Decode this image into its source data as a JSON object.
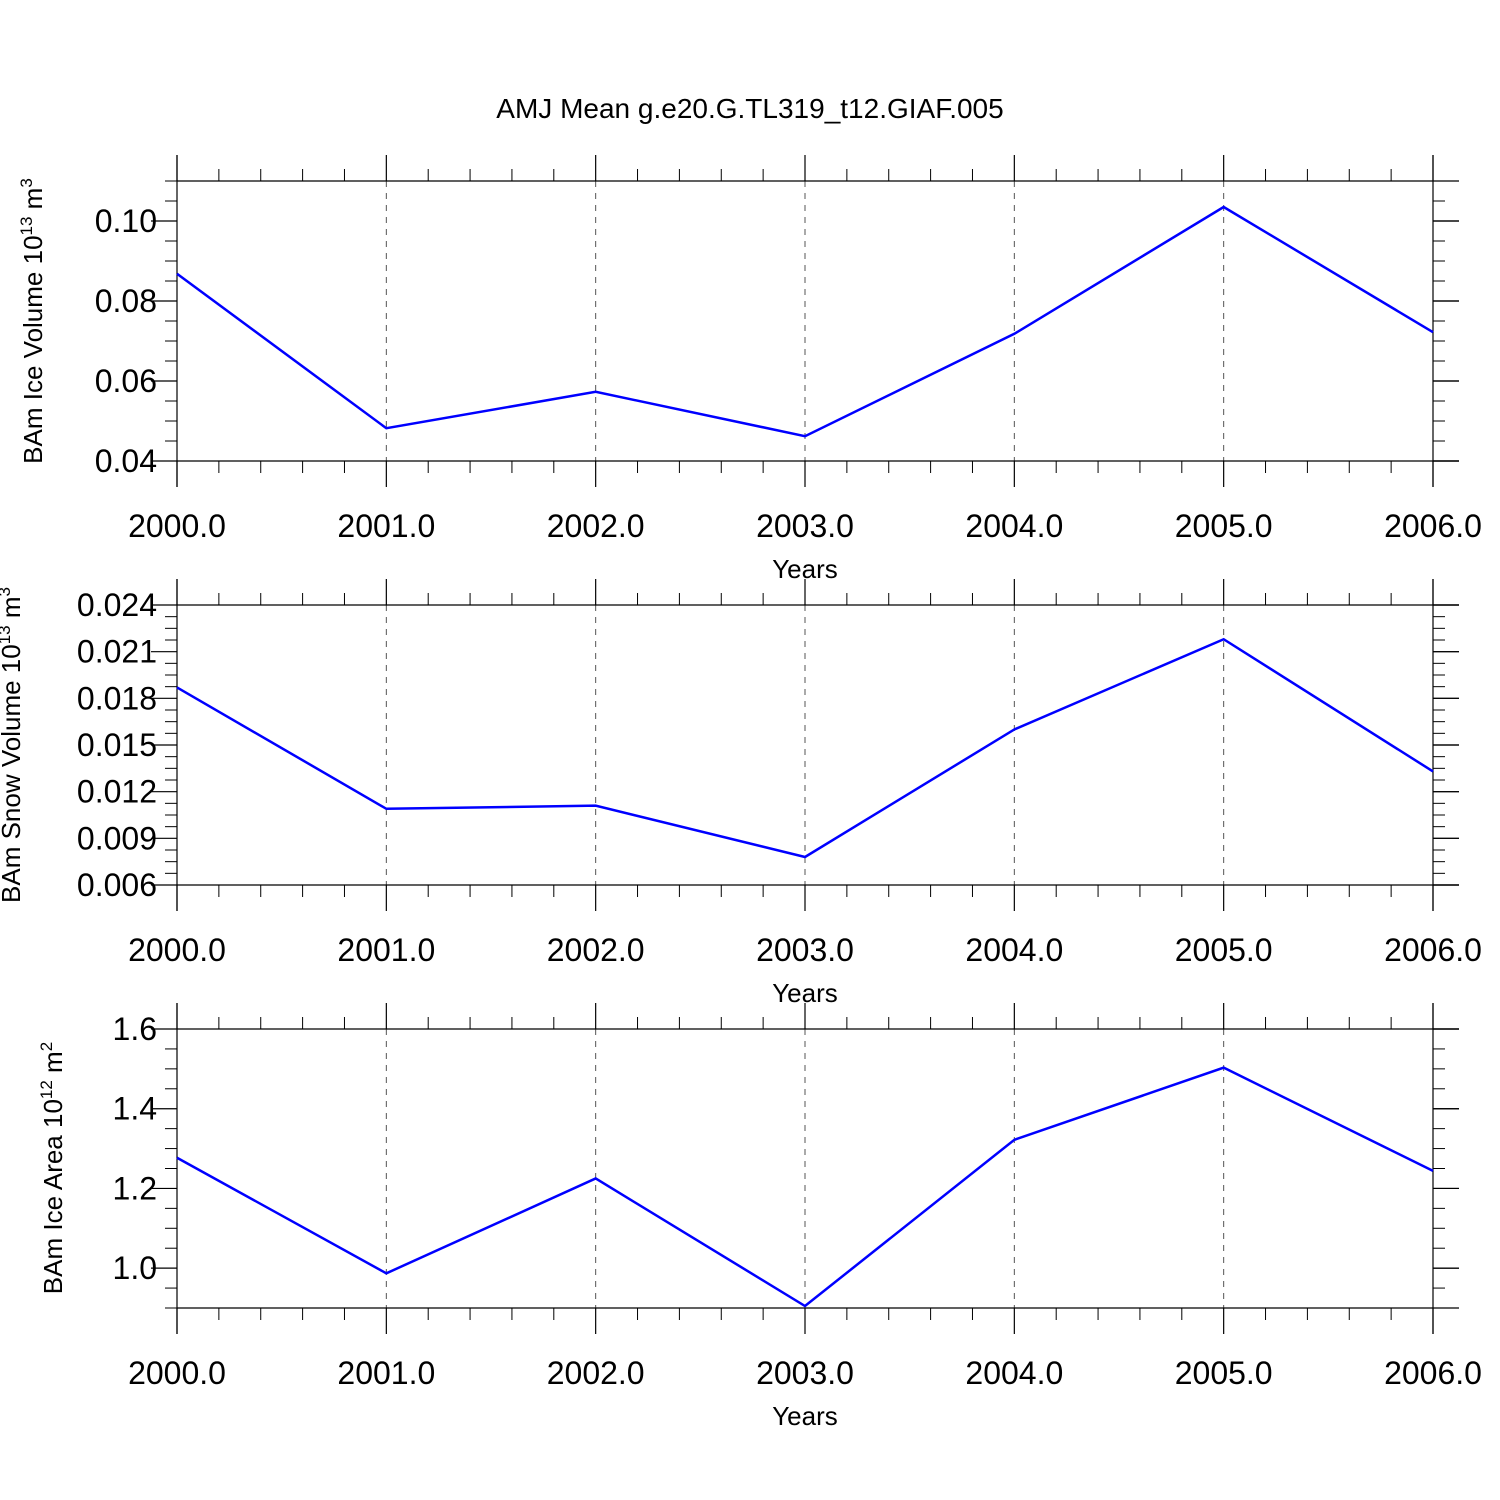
{
  "title": "AMJ Mean g.e20.G.TL319_t12.GIAF.005",
  "line_color": "#0000ff",
  "chart_data": [
    {
      "type": "line",
      "x": [
        2000,
        2001,
        2002,
        2003,
        2004,
        2005,
        2006
      ],
      "x_tick_labels": [
        "2000.0",
        "2001.0",
        "2002.0",
        "2003.0",
        "2004.0",
        "2005.0",
        "2006.0"
      ],
      "xlabel": "Years",
      "ylabel": {
        "text": "BAm Ice Volume 10",
        "sup": "13",
        "unit": " m",
        "unit_sup": "3"
      },
      "y_ticks": [
        0.04,
        0.06,
        0.08,
        0.1
      ],
      "y_tick_labels": [
        "0.04",
        "0.06",
        "0.08",
        "0.10"
      ],
      "ylim": [
        0.04,
        0.11
      ],
      "xlim": [
        2000,
        2006
      ],
      "values": [
        0.0868,
        0.0482,
        0.0573,
        0.0462,
        0.0718,
        0.1035,
        0.0722
      ],
      "grid": "vertical dashed"
    },
    {
      "type": "line",
      "x": [
        2000,
        2001,
        2002,
        2003,
        2004,
        2005,
        2006
      ],
      "x_tick_labels": [
        "2000.0",
        "2001.0",
        "2002.0",
        "2003.0",
        "2004.0",
        "2005.0",
        "2006.0"
      ],
      "xlabel": "Years",
      "ylabel": {
        "text": "BAm Snow Volume 10",
        "sup": "13",
        "unit": " m",
        "unit_sup": "3"
      },
      "y_ticks": [
        0.006,
        0.009,
        0.012,
        0.015,
        0.018,
        0.021,
        0.024
      ],
      "y_tick_labels": [
        "0.006",
        "0.009",
        "0.012",
        "0.015",
        "0.018",
        "0.021",
        "0.024"
      ],
      "ylim": [
        0.006,
        0.024
      ],
      "xlim": [
        2000,
        2006
      ],
      "values": [
        0.0187,
        0.0109,
        0.0111,
        0.0078,
        0.016,
        0.0218,
        0.0133
      ],
      "grid": "vertical dashed"
    },
    {
      "type": "line",
      "x": [
        2000,
        2001,
        2002,
        2003,
        2004,
        2005,
        2006
      ],
      "x_tick_labels": [
        "2000.0",
        "2001.0",
        "2002.0",
        "2003.0",
        "2004.0",
        "2005.0",
        "2006.0"
      ],
      "xlabel": "Years",
      "ylabel": {
        "text": "BAm Ice Area 10",
        "sup": "12",
        "unit": " m",
        "unit_sup": "2"
      },
      "y_ticks": [
        1.0,
        1.2,
        1.4,
        1.6
      ],
      "y_tick_labels": [
        "1.0",
        "1.2",
        "1.4",
        "1.6"
      ],
      "ylim": [
        0.9,
        1.6
      ],
      "xlim": [
        2000,
        2006
      ],
      "values": [
        1.277,
        0.987,
        1.225,
        0.905,
        1.322,
        1.503,
        1.244
      ],
      "grid": "vertical dashed"
    }
  ]
}
